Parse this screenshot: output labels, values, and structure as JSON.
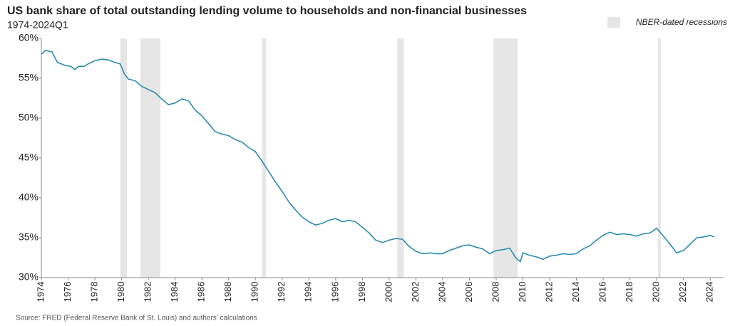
{
  "chart_data": {
    "type": "line",
    "title": "US bank share of total outstanding lending volume to households and non-financial businesses",
    "subtitle": "1974-2024Q1",
    "source": "Source: FRED (Federal Reserve Bank of St. Louis) and authors' calculations",
    "x": [
      1974.0,
      1974.3,
      1974.8,
      1975.2,
      1975.8,
      1976.2,
      1976.5,
      1976.8,
      1977.2,
      1977.5,
      1978.0,
      1978.5,
      1979.0,
      1979.5,
      1979.9,
      1980.2,
      1980.5,
      1981.0,
      1981.5,
      1982.0,
      1982.5,
      1983.0,
      1983.5,
      1984.0,
      1984.5,
      1985.0,
      1985.5,
      1986.0,
      1986.5,
      1987.0,
      1987.5,
      1988.0,
      1988.5,
      1989.0,
      1989.5,
      1990.0,
      1990.5,
      1991.0,
      1991.5,
      1992.0,
      1992.5,
      1993.0,
      1993.5,
      1994.0,
      1994.5,
      1995.0,
      1995.5,
      1996.0,
      1996.5,
      1997.0,
      1997.5,
      1998.0,
      1998.5,
      1999.0,
      1999.5,
      2000.0,
      2000.5,
      2001.0,
      2001.5,
      2002.0,
      2002.5,
      2003.0,
      2003.5,
      2004.0,
      2004.5,
      2005.0,
      2005.5,
      2006.0,
      2006.5,
      2007.0,
      2007.5,
      2008.0,
      2008.5,
      2009.0,
      2009.5,
      2009.8,
      2010.0,
      2010.5,
      2011.0,
      2011.5,
      2012.0,
      2012.5,
      2013.0,
      2013.5,
      2014.0,
      2014.5,
      2015.0,
      2015.5,
      2016.0,
      2016.5,
      2017.0,
      2017.5,
      2018.0,
      2018.5,
      2019.0,
      2019.5,
      2020.0,
      2020.5,
      2021.0,
      2021.5,
      2022.0,
      2022.5,
      2023.0,
      2023.5,
      2024.0,
      2024.3
    ],
    "series": [
      {
        "name": "US bank share",
        "color": "#2a8cb0",
        "values": [
          58.0,
          58.5,
          58.3,
          57.0,
          56.6,
          56.5,
          56.1,
          56.5,
          56.5,
          56.8,
          57.2,
          57.4,
          57.3,
          57.0,
          56.8,
          55.6,
          54.9,
          54.7,
          54.0,
          53.6,
          53.2,
          52.4,
          51.7,
          51.9,
          52.4,
          52.2,
          51.0,
          50.3,
          49.3,
          48.3,
          48.0,
          47.8,
          47.3,
          47.0,
          46.3,
          45.8,
          44.6,
          43.3,
          42.0,
          40.8,
          39.5,
          38.5,
          37.6,
          37.0,
          36.6,
          36.8,
          37.2,
          37.4,
          37.0,
          37.2,
          37.0,
          36.3,
          35.6,
          34.7,
          34.4,
          34.7,
          34.9,
          34.8,
          33.9,
          33.3,
          33.0,
          33.1,
          33.0,
          33.0,
          33.4,
          33.7,
          34.0,
          34.1,
          33.8,
          33.6,
          33.0,
          33.4,
          33.5,
          33.7,
          32.4,
          32.0,
          33.1,
          32.8,
          32.6,
          32.3,
          32.7,
          32.8,
          33.0,
          32.9,
          33.0,
          33.6,
          34.0,
          34.7,
          35.3,
          35.7,
          35.4,
          35.5,
          35.4,
          35.2,
          35.5,
          35.6,
          36.2,
          35.2,
          34.2,
          33.1,
          33.4,
          34.2,
          35.0,
          35.1,
          35.3,
          35.1
        ]
      }
    ],
    "recession_label": "NBER-dated recessions",
    "recession_color": "#e6e6e6",
    "recessions": [
      [
        1979.9,
        1980.4
      ],
      [
        1981.4,
        1982.9
      ],
      [
        1990.5,
        1990.8
      ],
      [
        2000.6,
        2001.1
      ],
      [
        2007.8,
        2009.6
      ],
      [
        2020.1,
        2020.3
      ]
    ],
    "xlim": [
      1974,
      2025
    ],
    "xticks": [
      1974,
      1976,
      1978,
      1980,
      1982,
      1984,
      1986,
      1988,
      1990,
      1992,
      1994,
      1996,
      1998,
      2000,
      2002,
      2004,
      2006,
      2008,
      2010,
      2012,
      2014,
      2016,
      2018,
      2020,
      2022,
      2024
    ],
    "ylim": [
      30,
      60
    ],
    "yticks": [
      {
        "value": 30,
        "label": "30%"
      },
      {
        "value": 35,
        "label": "35%"
      },
      {
        "value": 40,
        "label": "40%"
      },
      {
        "value": 45,
        "label": "45%"
      },
      {
        "value": 50,
        "label": "50%"
      },
      {
        "value": 55,
        "label": "55%"
      },
      {
        "value": 60,
        "label": "60%"
      }
    ]
  }
}
